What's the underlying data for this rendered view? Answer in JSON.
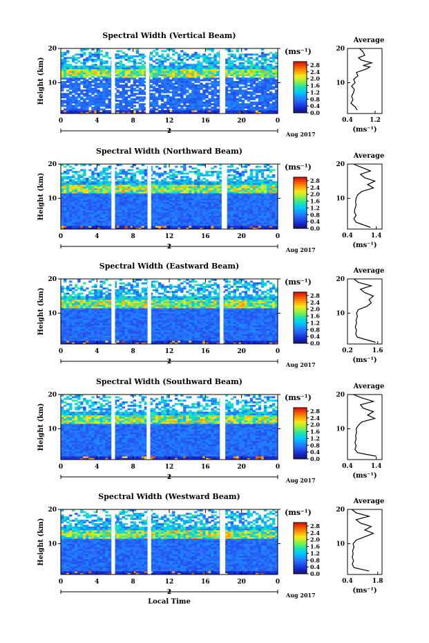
{
  "chart_data": [
    {
      "type": "heatmap",
      "title": "Spectral Width (Vertical Beam)",
      "xlabel": "",
      "ylabel": "Height (km)",
      "xlim": [
        0,
        24
      ],
      "ylim": [
        1,
        20
      ],
      "xticks": [
        "0",
        "4",
        "8",
        "12",
        "16",
        "20",
        "0"
      ],
      "yticks": [
        "10",
        "20"
      ],
      "date_marker": "2",
      "date_label": "Aug 2017",
      "gaps_hours": [
        [
          5.6,
          6.0
        ],
        [
          9.4,
          9.8
        ],
        [
          17.6,
          18.2
        ]
      ],
      "colorbar": {
        "unit": "(ms⁻¹)",
        "ticks": [
          "0.0",
          "0.4",
          "0.8",
          "1.2",
          "1.6",
          "2.0",
          "2.4",
          "2.8"
        ],
        "range": [
          0.0,
          3.0
        ]
      },
      "average": {
        "title": "Average",
        "xlabel": "(ms⁻¹)",
        "xticks": [
          "0.4",
          "1.2"
        ],
        "xlim": [
          0.4,
          1.4
        ],
        "yticks": [
          "10",
          "20"
        ],
        "profile": [
          [
            0.68,
            2
          ],
          [
            0.62,
            3
          ],
          [
            0.5,
            4
          ],
          [
            0.56,
            5
          ],
          [
            0.52,
            6
          ],
          [
            0.57,
            7
          ],
          [
            0.6,
            8
          ],
          [
            0.52,
            9
          ],
          [
            0.62,
            10
          ],
          [
            0.58,
            11
          ],
          [
            0.7,
            12
          ],
          [
            0.66,
            13
          ],
          [
            0.95,
            14
          ],
          [
            1.05,
            14.6
          ],
          [
            0.85,
            15
          ],
          [
            1.1,
            15.8
          ],
          [
            0.8,
            16.6
          ],
          [
            0.72,
            17.3
          ],
          [
            0.9,
            18
          ],
          [
            0.85,
            19
          ],
          [
            0.75,
            20
          ]
        ]
      }
    },
    {
      "type": "heatmap",
      "title": "Spectral Width (Northward Beam)",
      "xlabel": "",
      "ylabel": "Height (km)",
      "xlim": [
        0,
        24
      ],
      "ylim": [
        1,
        20
      ],
      "xticks": [
        "0",
        "4",
        "8",
        "12",
        "16",
        "20",
        "0"
      ],
      "yticks": [
        "10",
        "20"
      ],
      "date_marker": "2",
      "date_label": "Aug 2017",
      "gaps_hours": [
        [
          5.6,
          6.0
        ],
        [
          9.6,
          10.0
        ],
        [
          17.8,
          18.4
        ]
      ],
      "colorbar": {
        "unit": "(ms⁻¹)",
        "ticks": [
          "0.0",
          "0.4",
          "0.8",
          "1.2",
          "1.6",
          "2.0",
          "2.4",
          "2.8"
        ],
        "range": [
          0.0,
          3.0
        ]
      },
      "average": {
        "title": "Average",
        "xlabel": "(ms⁻¹)",
        "xticks": [
          "0.4",
          "1.4"
        ],
        "xlim": [
          0.4,
          1.6
        ],
        "yticks": [
          "10",
          "20"
        ],
        "profile": [
          [
            1.2,
            1.5
          ],
          [
            0.7,
            3
          ],
          [
            0.62,
            4
          ],
          [
            0.7,
            5
          ],
          [
            0.64,
            6
          ],
          [
            0.66,
            7
          ],
          [
            0.7,
            8
          ],
          [
            0.68,
            9
          ],
          [
            0.7,
            10
          ],
          [
            0.75,
            11
          ],
          [
            0.9,
            12
          ],
          [
            1.3,
            13
          ],
          [
            1.1,
            14
          ],
          [
            1.35,
            15
          ],
          [
            1.0,
            16
          ],
          [
            0.85,
            17
          ],
          [
            1.2,
            18
          ],
          [
            0.9,
            19
          ],
          [
            0.6,
            20
          ]
        ]
      }
    },
    {
      "type": "heatmap",
      "title": "Spectral Width (Eastward Beam)",
      "xlabel": "",
      "ylabel": "Height (km)",
      "xlim": [
        0,
        24
      ],
      "ylim": [
        1,
        20
      ],
      "xticks": [
        "0",
        "4",
        "8",
        "12",
        "16",
        "20",
        "0"
      ],
      "yticks": [
        "10",
        "20"
      ],
      "date_marker": "2",
      "date_label": "Aug 2017",
      "gaps_hours": [
        [
          5.6,
          6.0
        ],
        [
          9.6,
          10.0
        ],
        [
          17.6,
          18.0
        ]
      ],
      "colorbar": {
        "unit": "(ms⁻¹)",
        "ticks": [
          "0.0",
          "0.4",
          "0.8",
          "1.2",
          "1.6",
          "2.0",
          "2.4",
          "2.8"
        ],
        "range": [
          0.0,
          3.0
        ]
      },
      "average": {
        "title": "Average",
        "xlabel": "(ms⁻¹)",
        "xticks": [
          "0.2",
          "1.6"
        ],
        "xlim": [
          0.2,
          1.8
        ],
        "yticks": [
          "10",
          "20"
        ],
        "profile": [
          [
            1.5,
            1.5
          ],
          [
            0.65,
            3
          ],
          [
            0.58,
            4
          ],
          [
            0.62,
            5
          ],
          [
            0.56,
            6
          ],
          [
            0.62,
            7
          ],
          [
            0.6,
            8
          ],
          [
            0.66,
            9
          ],
          [
            0.62,
            10
          ],
          [
            0.7,
            11
          ],
          [
            1.1,
            12
          ],
          [
            1.3,
            13
          ],
          [
            1.2,
            14
          ],
          [
            1.4,
            15
          ],
          [
            1.0,
            16
          ],
          [
            0.8,
            17
          ],
          [
            1.3,
            18
          ],
          [
            0.7,
            19
          ],
          [
            0.5,
            20
          ]
        ]
      }
    },
    {
      "type": "heatmap",
      "title": "Spectral Width (Southward Beam)",
      "xlabel": "",
      "ylabel": "Height (km)",
      "xlim": [
        0,
        24
      ],
      "ylim": [
        1,
        20
      ],
      "xticks": [
        "0",
        "4",
        "8",
        "12",
        "16",
        "20",
        "0"
      ],
      "yticks": [
        "10",
        "20"
      ],
      "date_marker": "2",
      "date_label": "Aug 2017",
      "gaps_hours": [
        [
          5.6,
          6.0
        ],
        [
          9.5,
          9.9
        ],
        [
          17.6,
          18.2
        ]
      ],
      "colorbar": {
        "unit": "(ms⁻¹)",
        "ticks": [
          "0.0",
          "0.4",
          "0.8",
          "1.2",
          "1.6",
          "2.0",
          "2.4",
          "2.8"
        ],
        "range": [
          0.0,
          3.0
        ]
      },
      "average": {
        "title": "Average",
        "xlabel": "(ms⁻¹)",
        "xticks": [
          "0.4",
          "1.4"
        ],
        "xlim": [
          0.4,
          1.6
        ],
        "yticks": [
          "10",
          "20"
        ],
        "profile": [
          [
            1.4,
            2
          ],
          [
            0.75,
            3
          ],
          [
            0.66,
            4
          ],
          [
            0.7,
            5
          ],
          [
            0.66,
            6
          ],
          [
            0.7,
            7
          ],
          [
            0.68,
            8
          ],
          [
            0.72,
            9
          ],
          [
            0.7,
            10
          ],
          [
            0.78,
            11
          ],
          [
            0.9,
            12
          ],
          [
            1.35,
            13
          ],
          [
            1.1,
            14
          ],
          [
            1.3,
            15
          ],
          [
            0.95,
            16
          ],
          [
            0.85,
            17
          ],
          [
            1.3,
            18
          ],
          [
            0.9,
            19
          ],
          [
            0.6,
            20
          ]
        ]
      }
    },
    {
      "type": "heatmap",
      "title": "Spectral Width (Westward Beam)",
      "xlabel": "Local Time",
      "ylabel": "Height (km)",
      "xlim": [
        0,
        24
      ],
      "ylim": [
        1,
        20
      ],
      "xticks": [
        "0",
        "4",
        "8",
        "12",
        "16",
        "20",
        "0"
      ],
      "yticks": [
        "10",
        "20"
      ],
      "date_marker": "2",
      "date_label": "Aug 2017",
      "gaps_hours": [
        [
          5.6,
          6.0
        ],
        [
          9.6,
          10.0
        ],
        [
          17.6,
          18.2
        ]
      ],
      "colorbar": {
        "unit": "(ms⁻¹)",
        "ticks": [
          "0.0",
          "0.4",
          "0.8",
          "1.2",
          "1.6",
          "2.0",
          "2.4",
          "2.8"
        ],
        "range": [
          0.0,
          3.0
        ]
      },
      "average": {
        "title": "Average",
        "xlabel": "(ms⁻¹)",
        "xticks": [
          "0.4",
          "1.8"
        ],
        "xlim": [
          0.4,
          2.0
        ],
        "yticks": [
          "10",
          "20"
        ],
        "profile": [
          [
            1.4,
            2
          ],
          [
            0.7,
            3
          ],
          [
            0.62,
            4
          ],
          [
            0.68,
            5
          ],
          [
            0.62,
            6
          ],
          [
            0.66,
            7
          ],
          [
            0.64,
            8
          ],
          [
            0.7,
            9
          ],
          [
            0.66,
            10
          ],
          [
            0.8,
            11
          ],
          [
            1.2,
            12
          ],
          [
            1.6,
            13
          ],
          [
            1.2,
            14
          ],
          [
            1.5,
            15
          ],
          [
            1.0,
            16
          ],
          [
            0.8,
            17
          ],
          [
            1.4,
            18
          ],
          [
            0.8,
            19
          ],
          [
            0.6,
            20
          ]
        ]
      }
    }
  ]
}
